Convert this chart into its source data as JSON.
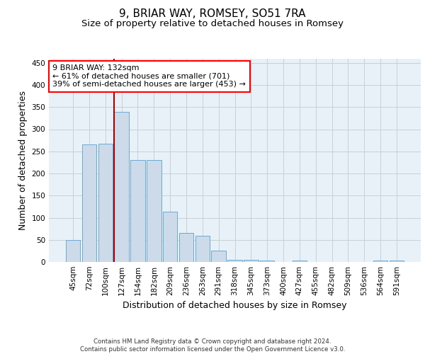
{
  "title": "9, BRIAR WAY, ROMSEY, SO51 7RA",
  "subtitle": "Size of property relative to detached houses in Romsey",
  "xlabel": "Distribution of detached houses by size in Romsey",
  "ylabel": "Number of detached properties",
  "bar_labels": [
    "45sqm",
    "72sqm",
    "100sqm",
    "127sqm",
    "154sqm",
    "182sqm",
    "209sqm",
    "236sqm",
    "263sqm",
    "291sqm",
    "318sqm",
    "345sqm",
    "373sqm",
    "400sqm",
    "427sqm",
    "455sqm",
    "482sqm",
    "509sqm",
    "536sqm",
    "564sqm",
    "591sqm"
  ],
  "bar_values": [
    50,
    265,
    268,
    340,
    231,
    231,
    114,
    66,
    60,
    25,
    5,
    5,
    4,
    0,
    4,
    0,
    0,
    0,
    0,
    4,
    4
  ],
  "bar_color": "#ccdaea",
  "bar_edge_color": "#6aaad4",
  "grid_color": "#c8d0d8",
  "background_color": "#e8f0f8",
  "annotation_text": "9 BRIAR WAY: 132sqm\n← 61% of detached houses are smaller (701)\n39% of semi-detached houses are larger (453) →",
  "annotation_box_color": "white",
  "annotation_box_edge": "red",
  "footer": "Contains HM Land Registry data © Crown copyright and database right 2024.\nContains public sector information licensed under the Open Government Licence v3.0.",
  "ylim": [
    0,
    460
  ],
  "title_fontsize": 11,
  "subtitle_fontsize": 9.5,
  "xlabel_fontsize": 9,
  "ylabel_fontsize": 9,
  "tick_fontsize": 7.5,
  "annotation_fontsize": 8,
  "red_line_index": 3.5
}
